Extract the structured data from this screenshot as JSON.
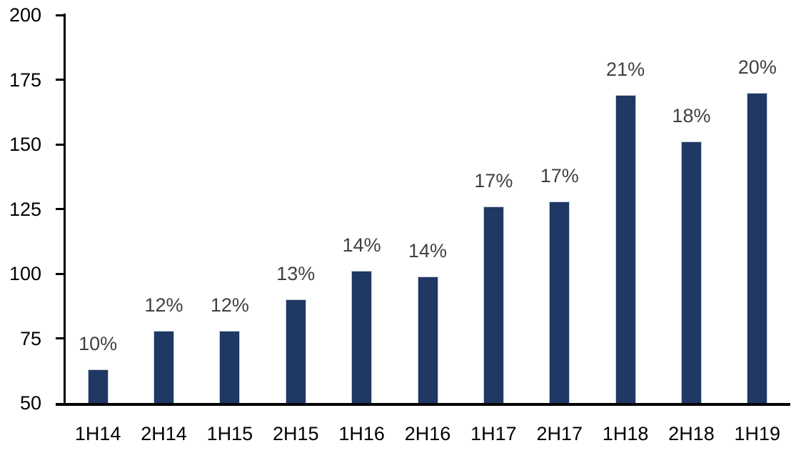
{
  "chart_data": {
    "type": "bar",
    "title": "",
    "xlabel": "",
    "ylabel": "",
    "categories": [
      "1H14",
      "2H14",
      "1H15",
      "2H15",
      "1H16",
      "2H16",
      "1H17",
      "2H17",
      "1H18",
      "2H18",
      "1H19"
    ],
    "values": [
      63,
      78,
      78,
      90,
      101,
      99,
      126,
      128,
      169,
      151,
      170
    ],
    "bar_labels": [
      "10%",
      "12%",
      "12%",
      "13%",
      "14%",
      "14%",
      "17%",
      "17%",
      "21%",
      "18%",
      "20%"
    ],
    "ylim": [
      50,
      200
    ],
    "yticks": [
      50,
      75,
      100,
      125,
      150,
      175,
      200
    ],
    "grid": false,
    "legend_position": "none",
    "colors": {
      "bar_fill": "#1F3864",
      "bar_border": "#C6CFDB",
      "value_label": "#404040",
      "axis": "#000000",
      "tick_label": "#000000",
      "background": "#FFFFFF"
    }
  }
}
